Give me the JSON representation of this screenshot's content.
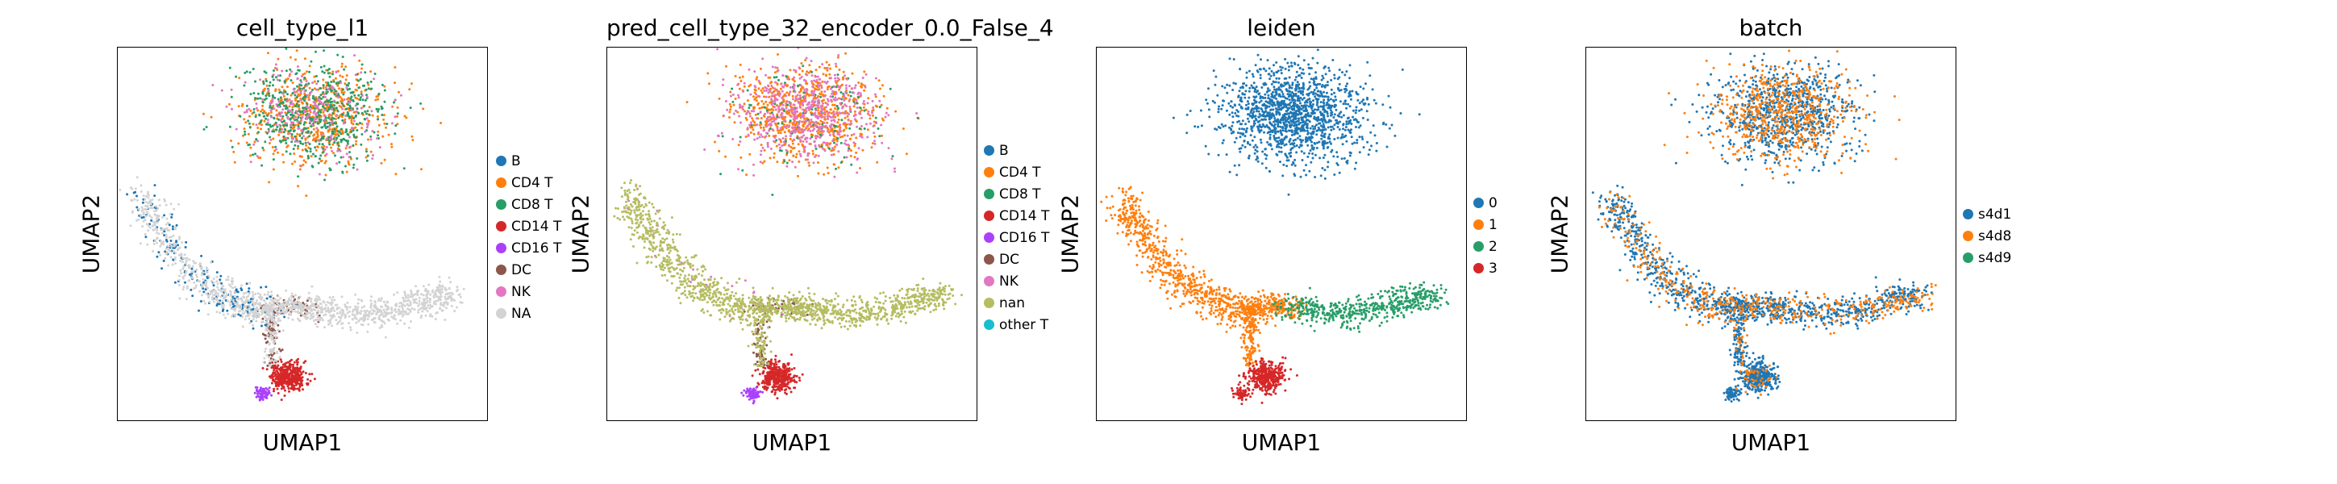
{
  "chart_data": [
    {
      "type": "scatter",
      "title": "cell_type_l1",
      "xlabel": "UMAP1",
      "ylabel": "UMAP2",
      "legend_position": "right",
      "categories": [
        {
          "name": "B",
          "color": "#1f77b4"
        },
        {
          "name": "CD4 T",
          "color": "#ff7f0e"
        },
        {
          "name": "CD8 T",
          "color": "#279e68"
        },
        {
          "name": "CD14 T",
          "color": "#d62728"
        },
        {
          "name": "CD16 T",
          "color": "#aa40fc"
        },
        {
          "name": "DC",
          "color": "#8c564b"
        },
        {
          "name": "NK",
          "color": "#e377c2"
        },
        {
          "name": "NA",
          "color": "#d3d3d3"
        }
      ]
    },
    {
      "type": "scatter",
      "title": "pred_cell_type_32_encoder_0.0_False_4",
      "xlabel": "UMAP1",
      "ylabel": "UMAP2",
      "legend_position": "right",
      "categories": [
        {
          "name": "B",
          "color": "#1f77b4"
        },
        {
          "name": "CD4 T",
          "color": "#ff7f0e"
        },
        {
          "name": "CD8 T",
          "color": "#279e68"
        },
        {
          "name": "CD14 T",
          "color": "#d62728"
        },
        {
          "name": "CD16 T",
          "color": "#aa40fc"
        },
        {
          "name": "DC",
          "color": "#8c564b"
        },
        {
          "name": "NK",
          "color": "#e377c2"
        },
        {
          "name": "nan",
          "color": "#b5bd61"
        },
        {
          "name": "other T",
          "color": "#17becf"
        }
      ]
    },
    {
      "type": "scatter",
      "title": "leiden",
      "xlabel": "UMAP1",
      "ylabel": "UMAP2",
      "legend_position": "right",
      "categories": [
        {
          "name": "0",
          "color": "#1f77b4"
        },
        {
          "name": "1",
          "color": "#ff7f0e"
        },
        {
          "name": "2",
          "color": "#279e68"
        },
        {
          "name": "3",
          "color": "#d62728"
        }
      ]
    },
    {
      "type": "scatter",
      "title": "batch",
      "xlabel": "UMAP1",
      "ylabel": "UMAP2",
      "legend_position": "right",
      "categories": [
        {
          "name": "s4d1",
          "color": "#1f77b4"
        },
        {
          "name": "s4d8",
          "color": "#ff7f0e"
        },
        {
          "name": "s4d9",
          "color": "#279e68"
        }
      ]
    }
  ]
}
